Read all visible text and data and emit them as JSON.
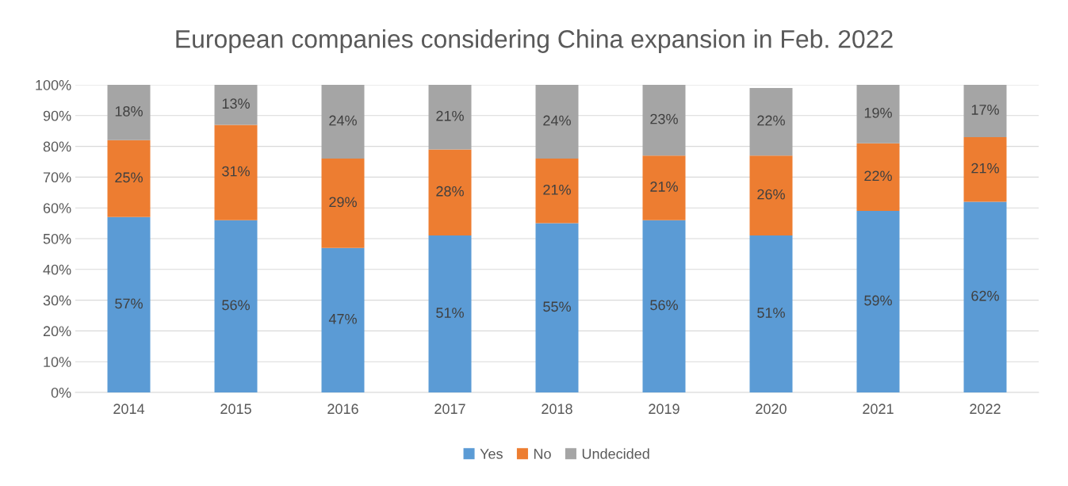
{
  "chart_data": {
    "type": "bar",
    "stacked": true,
    "title": "European companies considering China expansion in Feb. 2022",
    "categories": [
      "2014",
      "2015",
      "2016",
      "2017",
      "2018",
      "2019",
      "2020",
      "2021",
      "2022"
    ],
    "series": [
      {
        "name": "Yes",
        "color": "#5b9bd5",
        "values": [
          57,
          56,
          47,
          51,
          55,
          56,
          51,
          59,
          62
        ],
        "value_labels": [
          "57%",
          "56%",
          "47%",
          "51%",
          "55%",
          "56%",
          "51%",
          "59%",
          "62%"
        ]
      },
      {
        "name": "No",
        "color": "#ed7d31",
        "values": [
          25,
          31,
          29,
          28,
          21,
          21,
          26,
          22,
          21
        ],
        "value_labels": [
          "25%",
          "31%",
          "29%",
          "28%",
          "21%",
          "21%",
          "26%",
          "22%",
          "21%"
        ]
      },
      {
        "name": "Undecided",
        "color": "#a5a5a5",
        "values": [
          18,
          13,
          24,
          21,
          24,
          23,
          22,
          19,
          17
        ],
        "value_labels": [
          "18%",
          "13%",
          "24%",
          "21%",
          "24%",
          "23%",
          "22%",
          "19%",
          "17%"
        ]
      }
    ],
    "ylim": [
      0,
      100
    ],
    "yticks": [
      {
        "value": 0,
        "label": "0%"
      },
      {
        "value": 10,
        "label": "10%"
      },
      {
        "value": 20,
        "label": "20%"
      },
      {
        "value": 30,
        "label": "30%"
      },
      {
        "value": 40,
        "label": "40%"
      },
      {
        "value": 50,
        "label": "50%"
      },
      {
        "value": 60,
        "label": "60%"
      },
      {
        "value": 70,
        "label": "70%"
      },
      {
        "value": 80,
        "label": "80%"
      },
      {
        "value": 90,
        "label": "90%"
      },
      {
        "value": 100,
        "label": "100%"
      }
    ],
    "grid": "y",
    "legend": "bottom"
  }
}
